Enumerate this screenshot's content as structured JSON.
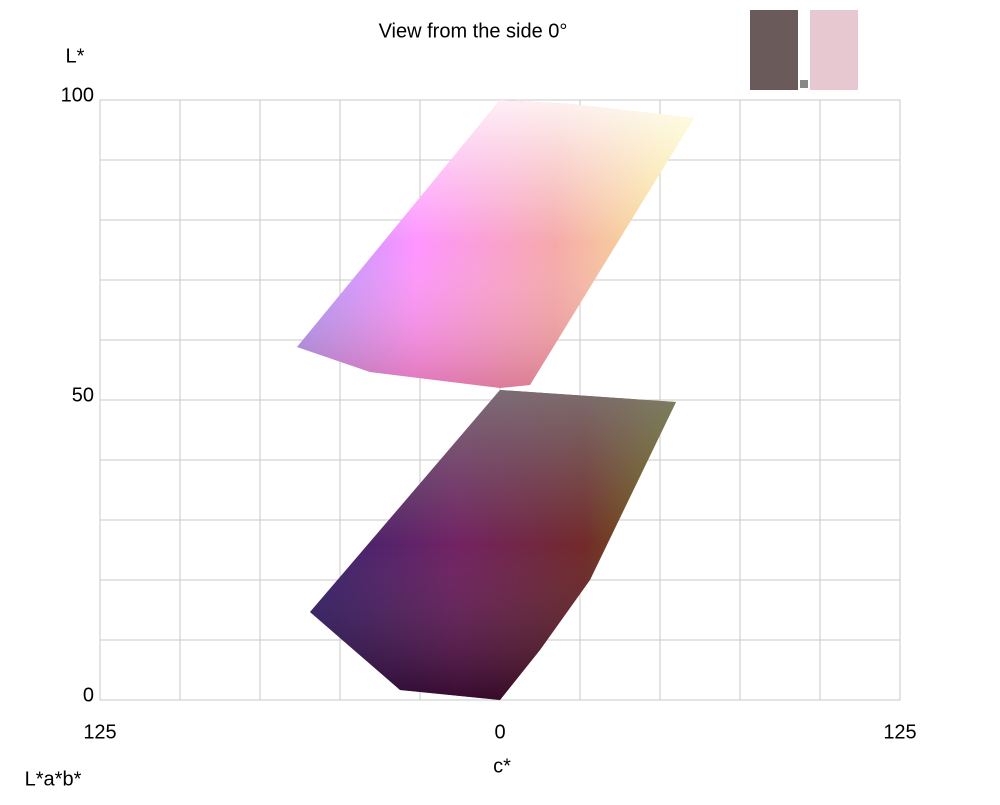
{
  "chart_data": {
    "type": "scatter",
    "title": "View from the side 0°",
    "xlabel": "c*",
    "ylabel": "L*",
    "corner_label": "L*a*b*",
    "xlim": [
      -125,
      125
    ],
    "xticks": [
      {
        "value": -125,
        "label": "125"
      },
      0,
      125
    ],
    "ylim": [
      0,
      100
    ],
    "yticks": [
      0,
      50,
      100
    ],
    "xgrid": [
      -125,
      -100,
      -75,
      -50,
      -25,
      0,
      25,
      50,
      75,
      100,
      125
    ],
    "ygrid": [
      0,
      10,
      20,
      30,
      40,
      50,
      60,
      70,
      80,
      90,
      100
    ],
    "grid": true
  }
}
